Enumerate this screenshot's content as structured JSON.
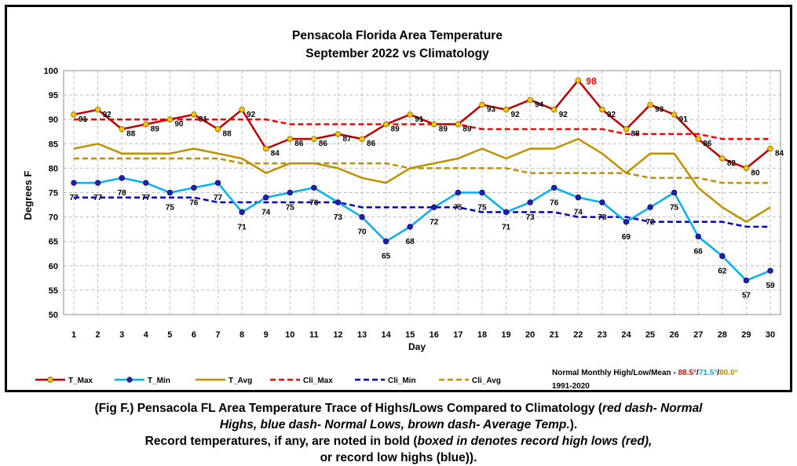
{
  "chart_data": {
    "type": "line",
    "title": "Pensacola Florida Area Temperature",
    "subtitle": "September 2022 vs Climatology",
    "xlabel": "Day",
    "ylabel": "Degrees F",
    "ylim": [
      50,
      100
    ],
    "yticks": [
      50,
      55,
      60,
      65,
      70,
      75,
      80,
      85,
      90,
      95,
      100
    ],
    "grid": "vertical and horizontal dashed",
    "categories": [
      1,
      2,
      3,
      4,
      5,
      6,
      7,
      8,
      9,
      10,
      11,
      12,
      13,
      14,
      15,
      16,
      17,
      18,
      19,
      20,
      21,
      22,
      23,
      24,
      25,
      26,
      27,
      28,
      29,
      30
    ],
    "series": [
      {
        "name": "T_Max",
        "color": "#c00000",
        "marker": "#f5c400",
        "style": "solid",
        "values": [
          91,
          92,
          88,
          89,
          90,
          91,
          88,
          92,
          84,
          86,
          86,
          87,
          86,
          89,
          91,
          89,
          89,
          93,
          92,
          94,
          92,
          98,
          92,
          88,
          93,
          91,
          86,
          82,
          80,
          84
        ]
      },
      {
        "name": "T_Min",
        "color": "#00b0f0",
        "marker": "#1f1fb4",
        "style": "solid",
        "values": [
          77,
          77,
          78,
          77,
          75,
          76,
          77,
          71,
          74,
          75,
          76,
          73,
          70,
          65,
          68,
          72,
          75,
          75,
          71,
          73,
          76,
          74,
          73,
          69,
          72,
          75,
          66,
          62,
          57,
          59
        ]
      },
      {
        "name": "T_Avg",
        "color": "#bf9000",
        "style": "solid",
        "values": [
          84,
          85,
          83,
          83,
          83,
          84,
          83,
          82,
          79,
          81,
          81,
          80,
          78,
          77,
          80,
          81,
          82,
          84,
          82,
          84,
          84,
          86,
          83,
          79,
          83,
          83,
          76,
          72,
          69,
          72
        ]
      },
      {
        "name": "Cli_Max",
        "color": "#ff0000",
        "style": "dash",
        "values": [
          90,
          90,
          90,
          90,
          90,
          90,
          90,
          90,
          90,
          89,
          89,
          89,
          89,
          89,
          89,
          89,
          89,
          88,
          88,
          88,
          88,
          88,
          88,
          87,
          87,
          87,
          87,
          86,
          86,
          86
        ]
      },
      {
        "name": "Cli_Min",
        "color": "#0000cc",
        "style": "dash",
        "values": [
          74,
          74,
          74,
          74,
          74,
          74,
          73,
          73,
          73,
          73,
          73,
          73,
          72,
          72,
          72,
          72,
          72,
          71,
          71,
          71,
          71,
          70,
          70,
          70,
          69,
          69,
          69,
          69,
          68,
          68
        ]
      },
      {
        "name": "Cli_Avg",
        "color": "#bf9000",
        "style": "dash",
        "values": [
          82,
          82,
          82,
          82,
          82,
          82,
          82,
          81,
          81,
          81,
          81,
          81,
          81,
          81,
          80,
          80,
          80,
          80,
          80,
          79,
          79,
          79,
          79,
          79,
          78,
          78,
          78,
          77,
          77,
          77
        ]
      }
    ],
    "max_labels": [
      "91",
      "92",
      "88",
      "89",
      "90",
      "91",
      "88",
      "92",
      "84",
      "86",
      "86",
      "87",
      "86",
      "89",
      "91",
      "89",
      "89",
      "93",
      "92",
      "94",
      "92",
      "98",
      "92",
      "88",
      "93",
      "91",
      "86",
      "82",
      "80",
      "84"
    ],
    "min_labels": [
      "77",
      "77",
      "78",
      "77",
      "75",
      "76",
      "77",
      "71",
      "74",
      "75",
      "76",
      "73",
      "70",
      "65",
      "68",
      "72",
      "75",
      "75",
      "71",
      "73",
      "76",
      "74",
      "73",
      "69",
      "72",
      "75",
      "66",
      "62",
      "57",
      "59"
    ],
    "highlight_label": {
      "day": 22,
      "text": "98",
      "color": "#ff0000"
    },
    "legend": {
      "placement": "bottom",
      "note_prefix": "Normal Monthly High/Low/Mean - ",
      "note_high": "88.5°",
      "note_sep1": "/",
      "note_low": "71.5°",
      "note_sep2": "/",
      "note_mean": "80.0°",
      "note_period": "1991-2020",
      "note_high_color": "#ff0000",
      "note_low_color": "#00b0f0",
      "note_mean_color": "#bf9000"
    }
  },
  "caption": {
    "l1_a": "(Fig F.) Pensacola FL Area Temperature Trace of Highs/Lows Compared to Climatology (",
    "l1_b": "red dash- Normal",
    "l2_a": "Highs, blue dash- Normal Lows, brown dash- Average Temp.",
    "l2_b": ").",
    "l3_a": "Record temperatures, if any, are noted in bold (",
    "l3_b": "boxed in denotes record high lows (red),",
    "l4_a": "or record low highs (blue)",
    "l4_b": ")."
  }
}
